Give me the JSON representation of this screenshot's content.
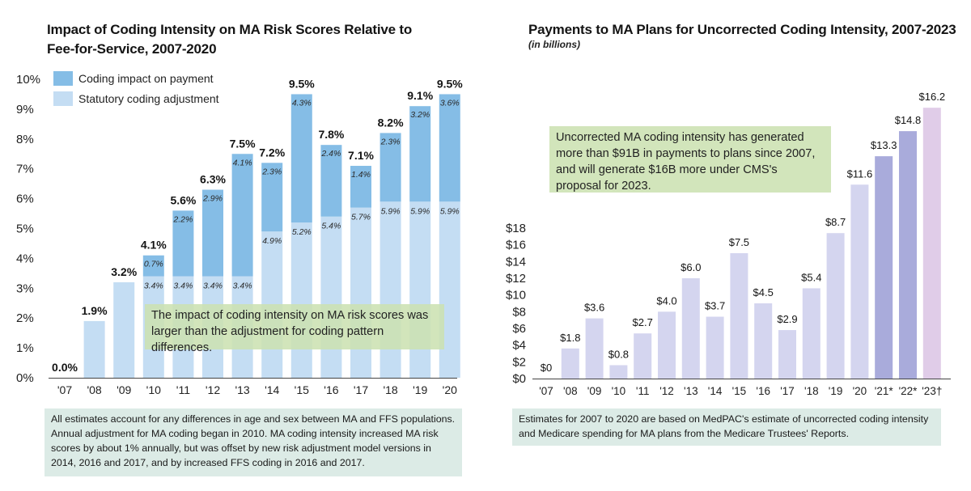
{
  "left": {
    "title": "Impact of Coding Intensity on MA Risk Scores Relative to Fee-for-Service, 2007-2020",
    "callout": "The impact of coding intensity on MA risk scores was larger than the adjustment for coding pattern differences.",
    "note": "All estimates account for any differences in age and sex between MA and FFS populations. Annual adjustment for MA coding began in 2010. MA coding intensity increased MA risk scores by about 1% annually, but was offset by new risk adjustment model versions in 2014, 2016 and 2017, and by increased FFS coding in 2016 and 2017."
  },
  "right": {
    "title": "Payments to MA Plans for Uncorrected Coding Intensity, 2007-2023",
    "subtitle": "(in billions)",
    "callout": "Uncorrected MA coding intensity has generated more than $91B in payments to plans since 2007, and will generate $16B more under CMS's proposal for 2023.",
    "note": "Estimates for 2007 to 2020 are based on MedPAC's estimate of uncorrected coding intensity and Medicare spending for MA plans from the Medicare Trustees' Reports."
  },
  "colors": {
    "coding_impact": "#85bde6",
    "statutory": "#c4ddf3",
    "payment_bar": "#d4d5ef",
    "payment_bar_projected": "#a9abdb",
    "payment_bar_2023": "#e0cce8",
    "note_bg": "#dcebe6",
    "callout_bg": "#cce1b2"
  },
  "chart_data": [
    {
      "type": "bar",
      "stacked": true,
      "categories": [
        "'07",
        "'08",
        "'09",
        "'10",
        "'11",
        "'12",
        "'13",
        "'14",
        "'15",
        "'16",
        "'17",
        "'18",
        "'19",
        "'20"
      ],
      "series": [
        {
          "name": "Statutory coding adjustment",
          "values": [
            0,
            1.9,
            3.2,
            3.4,
            3.4,
            3.4,
            3.4,
            4.9,
            5.2,
            5.4,
            5.7,
            5.9,
            5.9,
            5.9
          ]
        },
        {
          "name": "Coding impact on payment",
          "values": [
            0,
            0,
            0,
            0.7,
            2.2,
            2.9,
            4.1,
            2.3,
            4.3,
            2.4,
            1.4,
            2.3,
            3.2,
            3.6
          ]
        }
      ],
      "totals": [
        "0.0%",
        "1.9%",
        "3.2%",
        "4.1%",
        "5.6%",
        "6.3%",
        "7.5%",
        "7.2%",
        "9.5%",
        "7.8%",
        "7.1%",
        "8.2%",
        "9.1%",
        "9.5%"
      ],
      "statutory_labels": [
        "",
        "",
        "",
        "3.4%",
        "3.4%",
        "3.4%",
        "3.4%",
        "4.9%",
        "5.2%",
        "5.4%",
        "5.7%",
        "5.9%",
        "5.9%",
        "5.9%"
      ],
      "impact_labels": [
        "",
        "",
        "",
        "0.7%",
        "2.2%",
        "2.9%",
        "4.1%",
        "2.3%",
        "4.3%",
        "2.4%",
        "1.4%",
        "2.3%",
        "3.2%",
        "3.6%"
      ],
      "yticks": [
        "0%",
        "1%",
        "2%",
        "3%",
        "4%",
        "5%",
        "6%",
        "7%",
        "8%",
        "9%",
        "10%"
      ],
      "ylim": [
        0,
        10
      ],
      "legend_position": "top-left",
      "grid": false
    },
    {
      "type": "bar",
      "categories": [
        "'07",
        "'08",
        "'09",
        "'10",
        "'11",
        "'12",
        "'13",
        "'14",
        "'15",
        "'16",
        "'17",
        "'18",
        "'19",
        "'20",
        "'21*",
        "'22*",
        "'23†"
      ],
      "values": [
        0,
        1.8,
        3.6,
        0.8,
        2.7,
        4.0,
        6.0,
        3.7,
        7.5,
        4.5,
        2.9,
        5.4,
        8.7,
        11.6,
        13.3,
        14.8,
        16.2
      ],
      "value_labels": [
        "$0",
        "$1.8",
        "$3.6",
        "$0.8",
        "$2.7",
        "$4.0",
        "$6.0",
        "$3.7",
        "$7.5",
        "$4.5",
        "$2.9",
        "$5.4",
        "$8.7",
        "$11.6",
        "$13.3",
        "$14.8",
        "$16.2"
      ],
      "yticks": [
        "$0",
        "$2",
        "$4",
        "$6",
        "$8",
        "$10",
        "$12",
        "$14",
        "$16",
        "$18"
      ],
      "ylim": [
        0,
        18
      ],
      "grid": false
    }
  ]
}
